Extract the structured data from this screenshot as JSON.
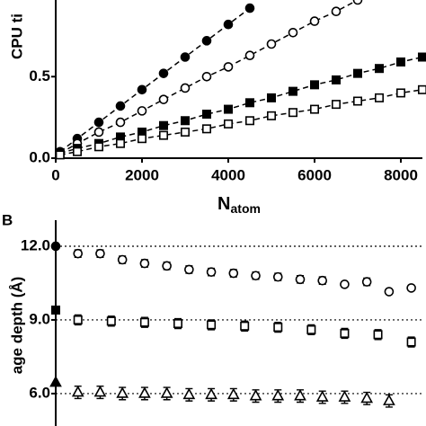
{
  "chart_data": [
    {
      "type": "line",
      "ylabel": "CPU ti",
      "xlabel": "N",
      "xlabel_sub": "atom",
      "xlim": [
        0,
        8500
      ],
      "xticks": [
        0,
        2000,
        4000,
        6000,
        8000
      ],
      "ylim": [
        0,
        0.97
      ],
      "yticks": [
        {
          "value": 0,
          "label": "0.0"
        },
        0.5
      ],
      "series": [
        {
          "marker": "circle",
          "filled": true,
          "line": "dashed",
          "color": "#000000",
          "x": [
            100,
            500,
            1000,
            1500,
            2000,
            2500,
            3000,
            3500,
            4000,
            4500
          ],
          "values": [
            0.04,
            0.12,
            0.22,
            0.32,
            0.42,
            0.52,
            0.62,
            0.72,
            0.82,
            0.92
          ]
        },
        {
          "marker": "circle",
          "filled": false,
          "line": "dashed",
          "color": "#000000",
          "x": [
            100,
            500,
            1000,
            1500,
            2000,
            2500,
            3000,
            3500,
            4000,
            4500,
            5000,
            5500,
            6000,
            6500,
            7000
          ],
          "values": [
            0.03,
            0.09,
            0.16,
            0.22,
            0.29,
            0.36,
            0.43,
            0.5,
            0.56,
            0.63,
            0.7,
            0.77,
            0.84,
            0.9,
            0.97
          ]
        },
        {
          "marker": "square",
          "filled": true,
          "line": "dashed",
          "color": "#000000",
          "x": [
            100,
            500,
            1000,
            1500,
            2000,
            2500,
            3000,
            3500,
            4000,
            4500,
            5000,
            5500,
            6000,
            6500,
            7000,
            7500,
            8000,
            8500
          ],
          "values": [
            0.03,
            0.06,
            0.09,
            0.13,
            0.16,
            0.2,
            0.23,
            0.27,
            0.3,
            0.34,
            0.37,
            0.41,
            0.45,
            0.48,
            0.52,
            0.55,
            0.59,
            0.62
          ]
        },
        {
          "marker": "square",
          "filled": false,
          "line": "dashed",
          "color": "#000000",
          "x": [
            100,
            500,
            1000,
            1500,
            2000,
            2500,
            3000,
            3500,
            4000,
            4500,
            5000,
            5500,
            6000,
            6500,
            7000,
            7500,
            8000,
            8500
          ],
          "values": [
            0.02,
            0.04,
            0.07,
            0.09,
            0.12,
            0.14,
            0.16,
            0.18,
            0.21,
            0.23,
            0.26,
            0.28,
            0.3,
            0.33,
            0.35,
            0.37,
            0.4,
            0.42
          ]
        }
      ]
    },
    {
      "type": "scatter",
      "panel": "B",
      "ylabel": "age depth (Å)",
      "xlim": [
        0,
        16.5
      ],
      "ylim": [
        4.68,
        13.06
      ],
      "yticks": [
        {
          "value": 6,
          "label": "6.0"
        },
        {
          "value": 9,
          "label": "9.0"
        },
        {
          "value": 12,
          "label": "12.0"
        }
      ],
      "grid": "dotted",
      "series": [
        {
          "marker": "circle",
          "filled": false,
          "color": "#000000",
          "x": [
            1,
            2,
            3,
            4,
            5,
            6,
            7,
            8,
            9,
            10,
            11,
            12,
            13,
            14,
            15,
            16
          ],
          "values": [
            11.7,
            11.7,
            11.45,
            11.3,
            11.2,
            11.05,
            10.95,
            10.9,
            10.8,
            10.75,
            10.65,
            10.6,
            10.45,
            10.55,
            10.15,
            10.3
          ],
          "errors": [
            0.15,
            0.15,
            0.15,
            0.15,
            0.15,
            0.15,
            0.15,
            0.15,
            0.15,
            0.15,
            0.15,
            0.15,
            0,
            0.15,
            0,
            0
          ]
        },
        {
          "marker": "square",
          "filled": false,
          "color": "#000000",
          "x": [
            1,
            2.5,
            4,
            5.5,
            7,
            8.5,
            10,
            11.5,
            13,
            14.5,
            16
          ],
          "values": [
            9.0,
            8.95,
            8.9,
            8.85,
            8.8,
            8.75,
            8.7,
            8.6,
            8.45,
            8.4,
            8.1
          ],
          "errors": [
            0.2,
            0.2,
            0.2,
            0.2,
            0.2,
            0.2,
            0.2,
            0.2,
            0.2,
            0.2,
            0.2
          ]
        },
        {
          "marker": "triangle",
          "filled": false,
          "color": "#000000",
          "x": [
            1,
            2,
            3,
            4,
            5,
            6,
            7,
            8,
            9,
            10,
            11,
            12,
            13,
            14,
            15
          ],
          "values": [
            6.05,
            6.05,
            6.0,
            6.0,
            6.0,
            5.95,
            5.95,
            5.95,
            5.9,
            5.9,
            5.9,
            5.85,
            5.85,
            5.8,
            5.7
          ],
          "errors": [
            0.25,
            0.25,
            0.25,
            0.25,
            0.25,
            0.25,
            0.25,
            0.25,
            0.25,
            0.25,
            0.25,
            0.25,
            0.25,
            0.25,
            0.25
          ]
        },
        {
          "marker": "circle",
          "filled": true,
          "color": "#000000",
          "x": [
            0
          ],
          "values": [
            12.0
          ]
        },
        {
          "marker": "square",
          "filled": true,
          "color": "#000000",
          "x": [
            0
          ],
          "values": [
            9.4
          ]
        },
        {
          "marker": "triangle",
          "filled": true,
          "color": "#000000",
          "x": [
            0
          ],
          "values": [
            6.45
          ]
        }
      ]
    }
  ]
}
